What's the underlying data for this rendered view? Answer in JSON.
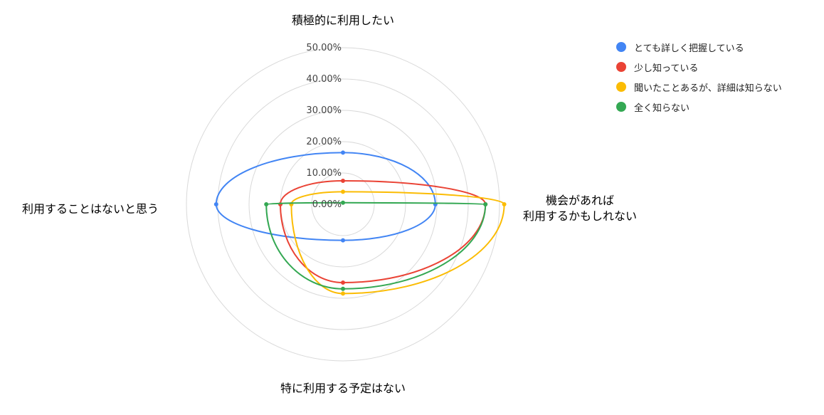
{
  "chart_data": {
    "type": "radar",
    "axes": [
      {
        "label": "積極的に利用したい"
      },
      {
        "label": "機会があれば利用するかもしれない",
        "lines": [
          "機会があれば",
          "利用するかもしれない"
        ]
      },
      {
        "label": "特に利用する予定はない"
      },
      {
        "label": "利用することはないと思う"
      }
    ],
    "ticks": [
      "0.00%",
      "10.00%",
      "20.00%",
      "30.00%",
      "40.00%",
      "50.00%"
    ],
    "tick_values": [
      0,
      10,
      20,
      30,
      40,
      50
    ],
    "rmax": 50,
    "grid": true,
    "legend_position": "top-right",
    "series": [
      {
        "name": "とても詳しく把握している",
        "color": "#4285F4",
        "values": [
          16.5,
          29.5,
          11.5,
          40.5
        ]
      },
      {
        "name": "少し知っている",
        "color": "#EA4335",
        "values": [
          7.5,
          45.5,
          25.0,
          20.0
        ]
      },
      {
        "name": "聞いたことあるが、詳細は知らない",
        "color": "#FBBC04",
        "values": [
          4.0,
          51.5,
          28.5,
          16.5
        ]
      },
      {
        "name": "全く知らない",
        "color": "#34A853",
        "values": [
          0.5,
          45.5,
          27.0,
          24.5
        ]
      }
    ]
  }
}
